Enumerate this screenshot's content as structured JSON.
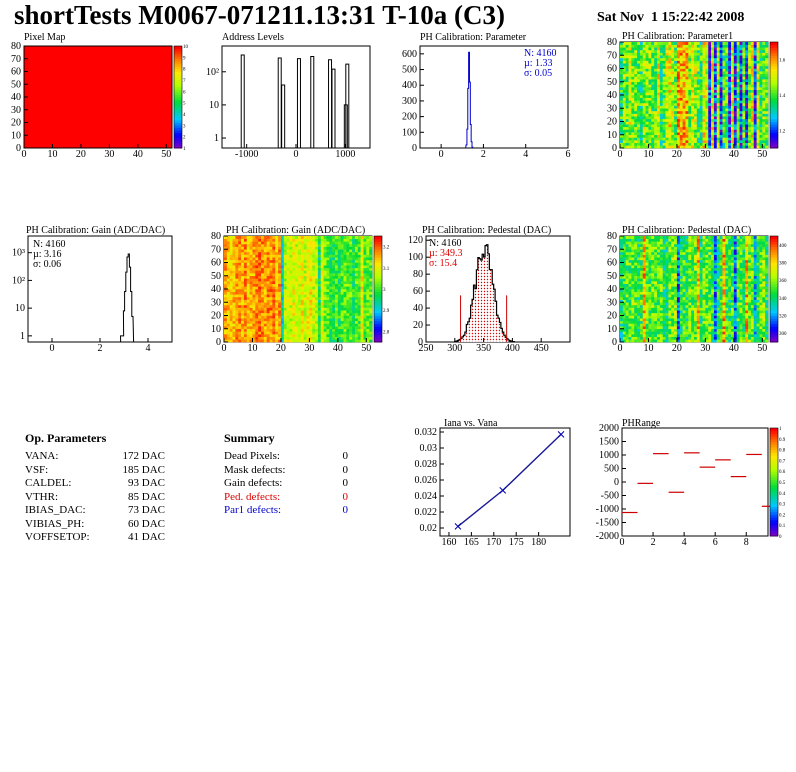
{
  "header": {
    "title": "shortTests M0067-071211.13:31 T-10a (C3)",
    "date": "Sat Nov  1 15:22:42 2008"
  },
  "colors": {
    "red": "#ff0000",
    "blue": "#0000cc",
    "darkred": "#cc0000",
    "black": "#000000"
  },
  "chart_data": [
    {
      "id": "pixel-map",
      "type": "heatmap",
      "title": "Pixel Map",
      "xlim": [
        0,
        52
      ],
      "ylim": [
        0,
        80
      ],
      "x_ticks": [
        "0",
        "10",
        "20",
        "30",
        "40",
        "50"
      ],
      "y_ticks": [
        "0",
        "10",
        "20",
        "30",
        "40",
        "50",
        "60",
        "70",
        "80"
      ],
      "uniform_value": 10,
      "colorbar_ticks": [
        "1",
        "2",
        "3",
        "4",
        "5",
        "6",
        "7",
        "8",
        "9",
        "10"
      ]
    },
    {
      "id": "address-levels",
      "type": "bar",
      "title": "Address Levels",
      "xlim": [
        -1500,
        1500
      ],
      "log_y": true,
      "x_ticks": [
        "-1000",
        "0",
        "1000"
      ],
      "y_ticks": [
        "1",
        "10",
        "10²"
      ],
      "peaks": [
        {
          "x": -1080,
          "count": 320
        },
        {
          "x": -330,
          "count": 260
        },
        {
          "x": -260,
          "count": 40
        },
        {
          "x": 60,
          "count": 250
        },
        {
          "x": 330,
          "count": 290
        },
        {
          "x": 690,
          "count": 230
        },
        {
          "x": 760,
          "count": 120
        },
        {
          "x": 1040,
          "count": 170
        },
        {
          "x": 1010,
          "count": 10
        }
      ]
    },
    {
      "id": "ph-param",
      "type": "bar",
      "title": "PH Calibration: Parameter",
      "xlim": [
        -1,
        6
      ],
      "ylim": [
        0,
        650
      ],
      "x_ticks": [
        "0",
        "2",
        "4",
        "6"
      ],
      "y_ticks": [
        "0",
        "100",
        "200",
        "300",
        "400",
        "500",
        "600"
      ],
      "stats": [
        "N: 4160",
        "µ: 1.33",
        "σ: 0.05"
      ],
      "bins": [
        {
          "x": 1.2,
          "y": 20
        },
        {
          "x": 1.24,
          "y": 120
        },
        {
          "x": 1.28,
          "y": 380
        },
        {
          "x": 1.32,
          "y": 610
        },
        {
          "x": 1.36,
          "y": 420
        },
        {
          "x": 1.4,
          "y": 150
        },
        {
          "x": 1.44,
          "y": 40
        },
        {
          "x": 1.48,
          "y": 5
        }
      ]
    },
    {
      "id": "ph-param1",
      "type": "heatmap",
      "title": "PH Calibration: Parameter1",
      "xlim": [
        0,
        52
      ],
      "ylim": [
        0,
        80
      ],
      "x_ticks": [
        "0",
        "10",
        "20",
        "30",
        "40",
        "50"
      ],
      "y_ticks": [
        "0",
        "10",
        "20",
        "30",
        "40",
        "50",
        "60",
        "70",
        "80"
      ],
      "colorbar_ticks": [
        "1.2",
        "1.4",
        "1.6"
      ]
    },
    {
      "id": "gain-1d",
      "type": "bar",
      "title": "PH Calibration: Gain (ADC/DAC)",
      "xlim": [
        -1,
        5
      ],
      "log_y": true,
      "x_ticks": [
        "0",
        "2",
        "4"
      ],
      "y_ticks": [
        "1",
        "10",
        "10²",
        "10³"
      ],
      "stats": [
        "N: 4160",
        "µ: 3.16",
        "σ: 0.06"
      ],
      "bins": [
        {
          "x": 2.88,
          "y": 1
        },
        {
          "x": 2.96,
          "y": 1
        },
        {
          "x": 3.0,
          "y": 8
        },
        {
          "x": 3.05,
          "y": 40
        },
        {
          "x": 3.1,
          "y": 200
        },
        {
          "x": 3.15,
          "y": 700
        },
        {
          "x": 3.2,
          "y": 900
        },
        {
          "x": 3.25,
          "y": 300
        },
        {
          "x": 3.3,
          "y": 40
        },
        {
          "x": 3.35,
          "y": 5
        }
      ]
    },
    {
      "id": "gain-2d",
      "type": "heatmap",
      "title": "PH Calibration: Gain (ADC/DAC)",
      "xlim": [
        0,
        52
      ],
      "ylim": [
        0,
        80
      ],
      "x_ticks": [
        "0",
        "10",
        "20",
        "30",
        "40",
        "50"
      ],
      "y_ticks": [
        "0",
        "10",
        "20",
        "30",
        "40",
        "50",
        "60",
        "70",
        "80"
      ],
      "colorbar_ticks": [
        "2.8",
        "2.9",
        "3",
        "3.1",
        "3.2"
      ]
    },
    {
      "id": "pedestal-1d",
      "type": "bar",
      "title": "PH Calibration: Pedestal (DAC)",
      "xlim": [
        250,
        500
      ],
      "ylim": [
        0,
        125
      ],
      "x_ticks": [
        "250",
        "300",
        "350",
        "400",
        "450"
      ],
      "y_ticks": [
        "0",
        "20",
        "40",
        "60",
        "80",
        "100",
        "120"
      ],
      "stats": [
        "N: 4160",
        "µ: 349.3",
        "σ: 15.4"
      ],
      "cut_lines": [
        310,
        390
      ],
      "cut_height": 55,
      "mean": 349.3,
      "sigma": 15.4,
      "peak": 110
    },
    {
      "id": "pedestal-2d",
      "type": "heatmap",
      "title": "PH Calibration: Pedestal (DAC)",
      "xlim": [
        0,
        52
      ],
      "ylim": [
        0,
        80
      ],
      "x_ticks": [
        "0",
        "10",
        "20",
        "30",
        "40",
        "50"
      ],
      "y_ticks": [
        "0",
        "10",
        "20",
        "30",
        "40",
        "50",
        "60",
        "70",
        "80"
      ],
      "colorbar_ticks": [
        "300",
        "320",
        "340",
        "360",
        "380",
        "400"
      ]
    },
    {
      "id": "iana-vana",
      "type": "line",
      "title": "Iana vs. Vana",
      "xlim": [
        158,
        187
      ],
      "ylim": [
        0.019,
        0.0325
      ],
      "x_ticks": [
        "160",
        "165",
        "170",
        "175",
        "180"
      ],
      "y_ticks": [
        "0.02",
        "0.022",
        "0.024",
        "0.026",
        "0.028",
        "0.03",
        "0.032"
      ],
      "x": [
        162,
        172,
        185
      ],
      "y": [
        0.0202,
        0.0247,
        0.0317
      ]
    },
    {
      "id": "phrange",
      "type": "scatter",
      "title": "PHRange",
      "xlim": [
        0,
        9.4
      ],
      "ylim": [
        -2000,
        2000
      ],
      "x_ticks": [
        "0",
        "2",
        "4",
        "6",
        "8"
      ],
      "y_ticks": [
        "-2000",
        "-1500",
        "-1000",
        "-500",
        "0",
        "500",
        "1000",
        "1500",
        "2000"
      ],
      "segments": [
        {
          "x": 0,
          "y": -1130
        },
        {
          "x": 1,
          "y": -50
        },
        {
          "x": 2,
          "y": 1050
        },
        {
          "x": 3,
          "y": -380
        },
        {
          "x": 4,
          "y": 1080
        },
        {
          "x": 5,
          "y": 550
        },
        {
          "x": 6,
          "y": 820
        },
        {
          "x": 7,
          "y": 200
        },
        {
          "x": 8,
          "y": 1020
        },
        {
          "x": 9,
          "y": -900
        }
      ],
      "colorbar_ticks": [
        "0",
        "0.1",
        "0.2",
        "0.3",
        "0.4",
        "0.5",
        "0.6",
        "0.7",
        "0.8",
        "0.9",
        "1"
      ]
    }
  ],
  "op_parameters": {
    "title": "Op. Parameters",
    "rows": [
      {
        "name": "VANA:",
        "value": "172 DAC"
      },
      {
        "name": "VSF:",
        "value": "185 DAC"
      },
      {
        "name": "CALDEL:",
        "value": "93 DAC"
      },
      {
        "name": "VTHR:",
        "value": "85 DAC"
      },
      {
        "name": "IBIAS_DAC:",
        "value": "73 DAC"
      },
      {
        "name": "VIBIAS_PH:",
        "value": "60 DAC"
      },
      {
        "name": "VOFFSETOP:",
        "value": "41 DAC"
      }
    ]
  },
  "summary": {
    "title": "Summary",
    "rows": [
      {
        "name": "Dead Pixels:",
        "value": "0",
        "color": "#000000"
      },
      {
        "name": "Mask defects:",
        "value": "0",
        "color": "#000000"
      },
      {
        "name": "Gain defects:",
        "value": "0",
        "color": "#000000"
      },
      {
        "name": "Ped. defects:",
        "value": "0",
        "color": "#dd0000"
      },
      {
        "name": "Par1 defects:",
        "value": "0",
        "color": "#0000cc"
      }
    ]
  }
}
